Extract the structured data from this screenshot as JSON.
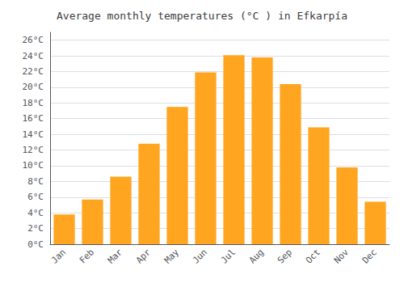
{
  "chart_data": {
    "type": "bar",
    "title": "Average monthly temperatures (°C ) in Efkarpía",
    "categories": [
      "Jan",
      "Feb",
      "Mar",
      "Apr",
      "May",
      "Jun",
      "Jul",
      "Aug",
      "Sep",
      "Oct",
      "Nov",
      "Dec"
    ],
    "values": [
      3.8,
      5.7,
      8.6,
      12.8,
      17.5,
      21.9,
      24.1,
      23.8,
      20.4,
      14.9,
      9.8,
      5.4
    ],
    "color": "#FFA520",
    "ylim": [
      0,
      27
    ],
    "yticks": [
      {
        "value": 0,
        "label": "0°C"
      },
      {
        "value": 2,
        "label": "2°C"
      },
      {
        "value": 4,
        "label": "4°C"
      },
      {
        "value": 6,
        "label": "6°C"
      },
      {
        "value": 8,
        "label": "8°C"
      },
      {
        "value": 10,
        "label": "10°C"
      },
      {
        "value": 12,
        "label": "12°C"
      },
      {
        "value": 14,
        "label": "14°C"
      },
      {
        "value": 16,
        "label": "16°C"
      },
      {
        "value": 18,
        "label": "18°C"
      },
      {
        "value": 20,
        "label": "20°C"
      },
      {
        "value": 22,
        "label": "22°C"
      },
      {
        "value": 24,
        "label": "24°C"
      },
      {
        "value": 26,
        "label": "26°C"
      }
    ],
    "grid": true
  }
}
